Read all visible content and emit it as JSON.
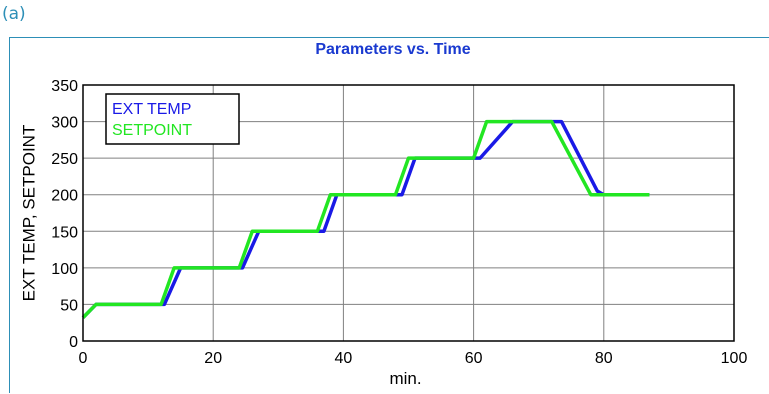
{
  "panel_label": "(a)",
  "chart_data": {
    "type": "line",
    "title": "Parameters vs. Time",
    "xlabel": "min.",
    "ylabel": "EXT TEMP, SETPOINT",
    "xlim": [
      0,
      100
    ],
    "ylim": [
      0,
      350
    ],
    "x_ticks": [
      0,
      20,
      40,
      60,
      80,
      100
    ],
    "y_ticks": [
      0,
      50,
      100,
      150,
      200,
      250,
      300,
      350
    ],
    "grid": true,
    "legend_position": "top-left",
    "series": [
      {
        "name": "EXT TEMP",
        "color": "#1a1ae6",
        "x": [
          0,
          2,
          3,
          12.5,
          15,
          24.5,
          27,
          37,
          39,
          49,
          51,
          61,
          66,
          73.5,
          79,
          80,
          87
        ],
        "y": [
          32,
          50,
          50,
          50,
          100,
          100,
          150,
          150,
          200,
          200,
          250,
          250,
          300,
          300,
          205,
          200,
          200
        ]
      },
      {
        "name": "SETPOINT",
        "color": "#22e622",
        "x": [
          0,
          2,
          12,
          14,
          24,
          26,
          36,
          38,
          48,
          50,
          60,
          62,
          72,
          78,
          87
        ],
        "y": [
          32,
          50,
          50,
          100,
          100,
          150,
          150,
          200,
          200,
          250,
          250,
          300,
          300,
          200,
          200
        ]
      }
    ]
  }
}
